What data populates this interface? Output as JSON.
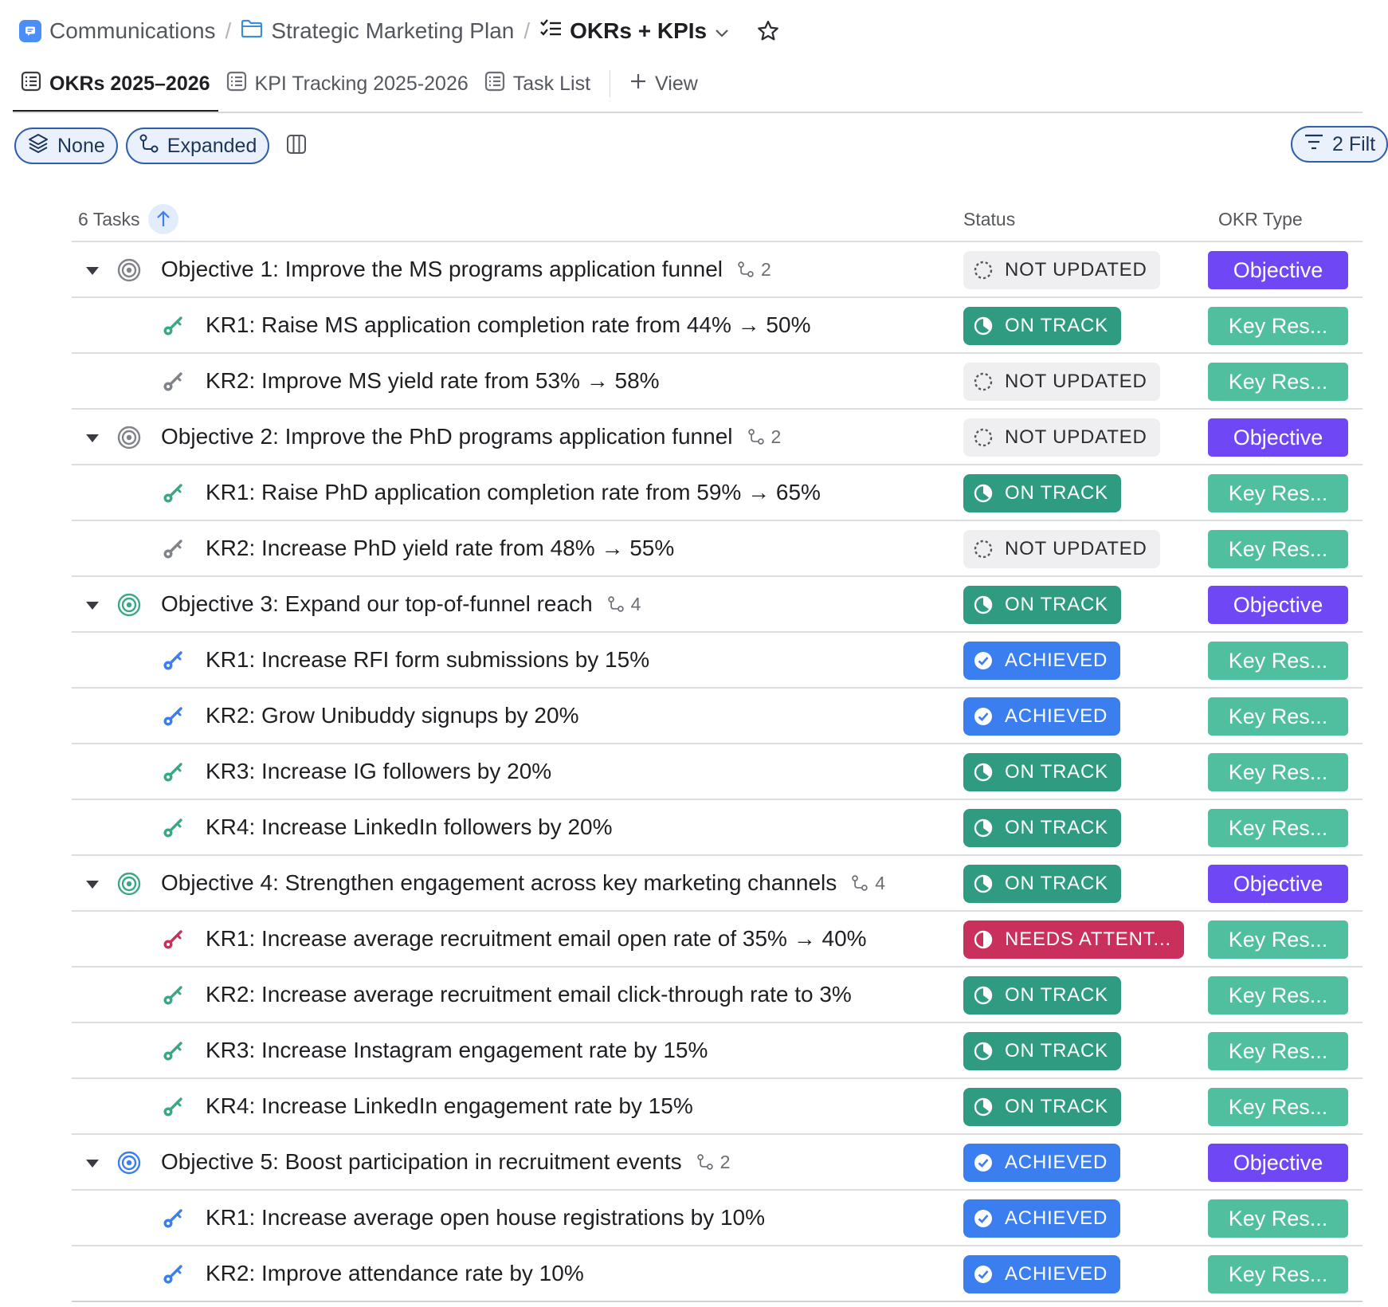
{
  "breadcrumb": {
    "space": "Communications",
    "folder": "Strategic Marketing Plan",
    "list": "OKRs + KPIs"
  },
  "tabs": [
    {
      "label": "OKRs 2025–2026",
      "active": true
    },
    {
      "label": "KPI Tracking 2025-2026",
      "active": false
    },
    {
      "label": "Task List",
      "active": false
    }
  ],
  "add_view_label": "View",
  "toolbar": {
    "group_label": "None",
    "subtasks_label": "Expanded",
    "filters_label": "2 Filt"
  },
  "table": {
    "count_label": "6 Tasks",
    "status_header": "Status",
    "okr_type_header": "OKR Type",
    "rows": [
      {
        "kind": "objective",
        "title": "Objective 1: Improve the MS programs application funnel",
        "subcount": "2",
        "icon_color": "#808389",
        "status": "NOT UPDATED",
        "status_kind": "not",
        "okr_type": "Objective"
      },
      {
        "kind": "kr",
        "title": "KR1: Raise MS application completion rate from 44% → 50%",
        "icon_color": "#3aa886",
        "status": "ON TRACK",
        "status_kind": "on",
        "okr_type": "Key Res..."
      },
      {
        "kind": "kr",
        "title": "KR2: Improve MS yield rate from 53% → 58%",
        "icon_color": "#808389",
        "status": "NOT UPDATED",
        "status_kind": "not",
        "okr_type": "Key Res..."
      },
      {
        "kind": "objective",
        "title": "Objective 2: Improve the PhD programs application funnel",
        "subcount": "2",
        "icon_color": "#808389",
        "status": "NOT UPDATED",
        "status_kind": "not",
        "okr_type": "Objective"
      },
      {
        "kind": "kr",
        "title": "KR1: Raise PhD application completion rate from 59% → 65%",
        "icon_color": "#3aa886",
        "status": "ON TRACK",
        "status_kind": "on",
        "okr_type": "Key Res..."
      },
      {
        "kind": "kr",
        "title": "KR2: Increase PhD yield rate from 48% → 55%",
        "icon_color": "#808389",
        "status": "NOT UPDATED",
        "status_kind": "not",
        "okr_type": "Key Res..."
      },
      {
        "kind": "objective",
        "title": "Objective 3: Expand our top-of-funnel reach",
        "subcount": "4",
        "icon_color": "#3aa886",
        "status": "ON TRACK",
        "status_kind": "on",
        "okr_type": "Objective"
      },
      {
        "kind": "kr",
        "title": "KR1: Increase RFI form submissions by 15%",
        "icon_color": "#3b7ef0",
        "status": "ACHIEVED",
        "status_kind": "ach",
        "okr_type": "Key Res..."
      },
      {
        "kind": "kr",
        "title": "KR2: Grow Unibuddy signups by 20%",
        "icon_color": "#3b7ef0",
        "status": "ACHIEVED",
        "status_kind": "ach",
        "okr_type": "Key Res..."
      },
      {
        "kind": "kr",
        "title": "KR3: Increase IG followers by 20%",
        "icon_color": "#3aa886",
        "status": "ON TRACK",
        "status_kind": "on",
        "okr_type": "Key Res..."
      },
      {
        "kind": "kr",
        "title": "KR4: Increase LinkedIn followers by 20%",
        "icon_color": "#3aa886",
        "status": "ON TRACK",
        "status_kind": "on",
        "okr_type": "Key Res..."
      },
      {
        "kind": "objective",
        "title": "Objective 4: Strengthen engagement across key marketing channels",
        "subcount": "4",
        "icon_color": "#3aa886",
        "status": "ON TRACK",
        "status_kind": "on",
        "okr_type": "Objective"
      },
      {
        "kind": "kr",
        "title": "KR1: Increase average recruitment email open rate of 35% → 40%",
        "icon_color": "#c9305b",
        "status": "NEEDS ATTENT...",
        "status_kind": "need",
        "okr_type": "Key Res..."
      },
      {
        "kind": "kr",
        "title": "KR2: Increase average recruitment email click-through rate to 3%",
        "icon_color": "#3aa886",
        "status": "ON TRACK",
        "status_kind": "on",
        "okr_type": "Key Res..."
      },
      {
        "kind": "kr",
        "title": "KR3: Increase Instagram engagement rate by 15%",
        "icon_color": "#3aa886",
        "status": "ON TRACK",
        "status_kind": "on",
        "okr_type": "Key Res..."
      },
      {
        "kind": "kr",
        "title": "KR4: Increase LinkedIn engagement rate by 15%",
        "icon_color": "#3aa886",
        "status": "ON TRACK",
        "status_kind": "on",
        "okr_type": "Key Res..."
      },
      {
        "kind": "objective",
        "title": "Objective 5: Boost participation in recruitment events",
        "subcount": "2",
        "icon_color": "#3b7ef0",
        "status": "ACHIEVED",
        "status_kind": "ach",
        "okr_type": "Objective"
      },
      {
        "kind": "kr",
        "title": "KR1: Increase average open house registrations by 10%",
        "icon_color": "#3b7ef0",
        "status": "ACHIEVED",
        "status_kind": "ach",
        "okr_type": "Key Res..."
      },
      {
        "kind": "kr",
        "title": "KR2: Improve attendance rate by 10%",
        "icon_color": "#3b7ef0",
        "status": "ACHIEVED",
        "status_kind": "ach",
        "okr_type": "Key Res..."
      }
    ]
  }
}
